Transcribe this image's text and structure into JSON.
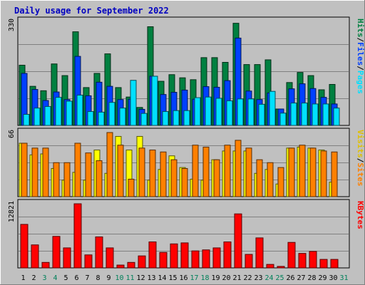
{
  "chart_data": {
    "type": "bar",
    "title": "Daily usage for September 2022",
    "days": [
      "1",
      "2",
      "3",
      "4",
      "5",
      "6",
      "7",
      "8",
      "9",
      "10",
      "11",
      "12",
      "13",
      "14",
      "15",
      "16",
      "17",
      "18",
      "19",
      "20",
      "21",
      "22",
      "23",
      "24",
      "25",
      "26",
      "27",
      "28",
      "29",
      "30",
      "31"
    ],
    "weekend_days": [
      "3",
      "4",
      "10",
      "11",
      "17",
      "18",
      "24",
      "25",
      "31"
    ],
    "panels": [
      {
        "id": "requests",
        "max_label": "330",
        "ymax": 330,
        "legend": [
          "Hits",
          "/",
          "Files",
          "/",
          "Pages"
        ],
        "series": [
          {
            "name": "Hits",
            "color": "#008040",
            "values": [
              191,
              124,
              110,
              195,
              158,
              297,
              120,
              165,
              227,
              120,
              90,
              57,
              313,
              140,
              161,
              151,
              145,
              215,
              215,
              200,
              324,
              193,
              193,
              208,
              52,
              136,
              168,
              158,
              113,
              130,
              0
            ]
          },
          {
            "name": "Files",
            "color": "#0040FF",
            "values": [
              165,
              114,
              79,
              106,
              82,
              219,
              94,
              137,
              124,
              82,
              83,
              51,
              156,
              98,
              105,
              112,
              83,
              123,
              121,
              142,
              277,
              109,
              82,
              103,
              52,
              116,
              132,
              117,
              89,
              68,
              0
            ]
          },
          {
            "name": "Pages",
            "color": "#00E0FF",
            "values": [
              35,
              55,
              60,
              89,
              77,
              96,
              44,
              42,
              73,
              55,
              143,
              38,
              156,
              44,
              47,
              47,
              88,
              90,
              86,
              78,
              84,
              84,
              67,
              108,
              39,
              71,
              71,
              68,
              68,
              55,
              0
            ]
          }
        ]
      },
      {
        "id": "visitors",
        "max_label": "66",
        "ymax": 66,
        "legend": [
          "Visits",
          "/",
          "Sites"
        ],
        "series": [
          {
            "name": "Visits",
            "color": "#FFFF00",
            "values": [
              55,
              43,
              44,
              29,
              17,
              25,
              17,
              48,
              24,
              62,
              48,
              62,
              17,
              28,
              42,
              30,
              18,
              17,
              38,
              47,
              47,
              47,
              24,
              28,
              13,
              50,
              51,
              50,
              48,
              15,
              0
            ]
          },
          {
            "name": "Sites",
            "color": "#FF8000",
            "values": [
              55,
              50,
              50,
              35,
              35,
              55,
              45,
              37,
              66,
              53,
              18,
              50,
              48,
              46,
              38,
              29,
              53,
              51,
              38,
              53,
              58,
              50,
              38,
              35,
              30,
              50,
              53,
              50,
              47,
              46,
              0
            ]
          }
        ]
      },
      {
        "id": "kbytes",
        "max_label": "12821",
        "ymax": 12821,
        "legend": [
          "KBytes"
        ],
        "series": [
          {
            "name": "KBytes",
            "color": "#FF0000",
            "values": [
              8700,
              4600,
              1100,
              6300,
              4000,
              12821,
              2600,
              6200,
              4000,
              565,
              1100,
              2400,
              5200,
              3100,
              4800,
              5000,
              3400,
              3600,
              4000,
              5200,
              10800,
              2700,
              6000,
              700,
              300,
              5100,
              2900,
              3300,
              1700,
              1700,
              0
            ]
          }
        ]
      }
    ],
    "legend_colors": {
      "Hits": "#008040",
      "Files": "#0040FF",
      "Pages": "#00E0FF",
      "Visits": "#E0C000",
      "Sites": "#FF8000",
      "KBytes": "#FF0000",
      "separator": "#000000"
    }
  }
}
